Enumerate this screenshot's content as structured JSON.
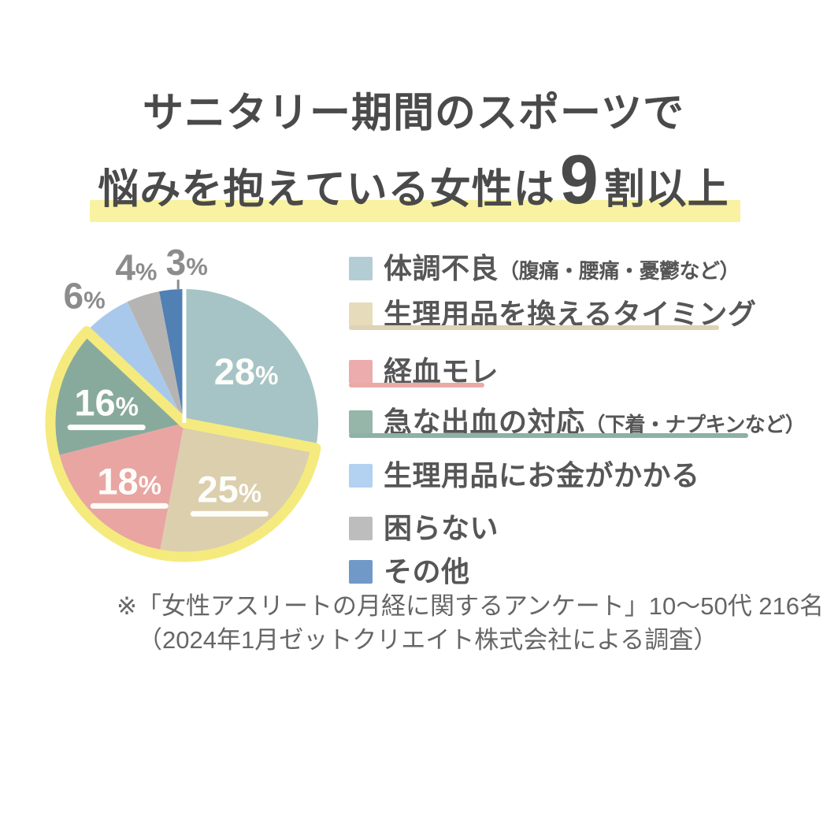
{
  "title": {
    "line1": "サニタリー期間のスポーツで",
    "line2_pre": "悩みを抱えている女性は",
    "line2_big": "9",
    "line2_post": "割以上",
    "text_color": "#4a4a4a",
    "highlight_color": "#f8f2a2"
  },
  "chart_data": {
    "type": "pie",
    "title": "サニタリー期間のスポーツで悩みを抱えている女性は9割以上",
    "start_angle_deg": 0,
    "direction": "clockwise",
    "total": 100,
    "slices": [
      {
        "label": "体調不良",
        "note": "（腹痛・腰痛・憂鬱など）",
        "value": 28,
        "pct_label": "28%",
        "color": "#a6c4c5",
        "swatch_color": "#b4cdd4",
        "label_position": "inside",
        "label_underlined": false,
        "highlighted": false
      },
      {
        "label": "生理用品を換えるタイミング",
        "note": "",
        "value": 25,
        "pct_label": "25%",
        "color": "#dccfae",
        "swatch_color": "#e6dcbb",
        "label_position": "inside",
        "label_underlined": true,
        "highlighted": true,
        "legend_underline_color": "#ddd3b5"
      },
      {
        "label": "経血モレ",
        "note": "",
        "value": 18,
        "pct_label": "18%",
        "color": "#e9a5a2",
        "swatch_color": "#ecabad",
        "label_position": "inside",
        "label_underlined": true,
        "highlighted": true,
        "legend_underline_color": "#eba9a6"
      },
      {
        "label": "急な出血の対応",
        "note": "（下着・ナプキンなど）",
        "value": 16,
        "pct_label": "16%",
        "color": "#88aa9d",
        "swatch_color": "#95b6a9",
        "label_position": "inside",
        "label_underlined": true,
        "highlighted": true,
        "legend_underline_color": "#8db1a4"
      },
      {
        "label": "生理用品にお金がかかる",
        "note": "",
        "value": 6,
        "pct_label": "6%",
        "color": "#a9c9ec",
        "swatch_color": "#b3d1f0",
        "label_position": "outside",
        "label_underlined": false,
        "highlighted": false
      },
      {
        "label": "困らない",
        "note": "",
        "value": 4,
        "pct_label": "4%",
        "color": "#b6b4b2",
        "swatch_color": "#bdbdbd",
        "label_position": "outside",
        "label_underlined": false,
        "highlighted": false
      },
      {
        "label": "その他",
        "note": "",
        "value": 3,
        "pct_label": "3%",
        "color": "#5080b4",
        "swatch_color": "#7099c8",
        "label_position": "outside",
        "label_underlined": false,
        "highlighted": false,
        "leader_line": true
      }
    ],
    "highlight": {
      "slice_indexes": [
        1,
        2,
        3
      ],
      "outline_color": "#f5ea7e"
    },
    "inside_label_color": "#fdfdfa",
    "outside_label_color": "#8c8c8c",
    "legend_position": "right"
  },
  "footer": {
    "line1": "※「女性アスリートの月経に関するアンケート」10〜50代 216名",
    "line2": "（2024年1月ゼットクリエイト株式会社による調査）"
  }
}
